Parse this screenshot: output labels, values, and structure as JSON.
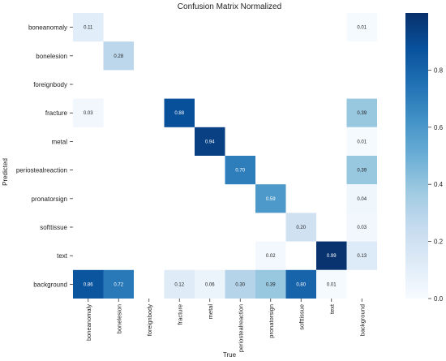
{
  "chart_data": {
    "type": "heatmap",
    "title": "Confusion Matrix Normalized",
    "xlabel": "True",
    "ylabel": "Predicted",
    "rows": [
      "boneanomaly",
      "bonelesion",
      "foreignbody",
      "fracture",
      "metal",
      "periostealreaction",
      "pronatorsign",
      "softtissue",
      "text",
      "background"
    ],
    "cols": [
      "boneanomaly",
      "bonelesion",
      "foreignbody",
      "fracture",
      "metal",
      "periostealreaction",
      "pronatorsign",
      "softtissue",
      "text",
      "background"
    ],
    "cells": [
      {
        "row": 0,
        "col": 0,
        "value": 0.11,
        "label": "0.11"
      },
      {
        "row": 0,
        "col": 9,
        "value": 0.01,
        "label": "0.01"
      },
      {
        "row": 1,
        "col": 1,
        "value": 0.28,
        "label": "0.28"
      },
      {
        "row": 3,
        "col": 0,
        "value": 0.03,
        "label": "0.03"
      },
      {
        "row": 3,
        "col": 3,
        "value": 0.88,
        "label": "0.88"
      },
      {
        "row": 3,
        "col": 9,
        "value": 0.39,
        "label": "0.39"
      },
      {
        "row": 4,
        "col": 4,
        "value": 0.94,
        "label": "0.94"
      },
      {
        "row": 4,
        "col": 9,
        "value": 0.01,
        "label": "0.01"
      },
      {
        "row": 5,
        "col": 5,
        "value": 0.7,
        "label": "0.70"
      },
      {
        "row": 5,
        "col": 9,
        "value": 0.39,
        "label": "0.39"
      },
      {
        "row": 6,
        "col": 6,
        "value": 0.59,
        "label": "0.59"
      },
      {
        "row": 6,
        "col": 9,
        "value": 0.04,
        "label": "0.04"
      },
      {
        "row": 7,
        "col": 7,
        "value": 0.2,
        "label": "0.20"
      },
      {
        "row": 7,
        "col": 9,
        "value": 0.03,
        "label": "0.03"
      },
      {
        "row": 8,
        "col": 6,
        "value": 0.02,
        "label": "0.02"
      },
      {
        "row": 8,
        "col": 8,
        "value": 0.99,
        "label": "0.99"
      },
      {
        "row": 8,
        "col": 9,
        "value": 0.13,
        "label": "0.13"
      },
      {
        "row": 9,
        "col": 0,
        "value": 0.86,
        "label": "0.86"
      },
      {
        "row": 9,
        "col": 1,
        "value": 0.72,
        "label": "0.72"
      },
      {
        "row": 9,
        "col": 3,
        "value": 0.12,
        "label": "0.12"
      },
      {
        "row": 9,
        "col": 4,
        "value": 0.06,
        "label": "0.06"
      },
      {
        "row": 9,
        "col": 5,
        "value": 0.3,
        "label": "0.30"
      },
      {
        "row": 9,
        "col": 6,
        "value": 0.39,
        "label": "0.39"
      },
      {
        "row": 9,
        "col": 7,
        "value": 0.8,
        "label": "0.80"
      },
      {
        "row": 9,
        "col": 8,
        "value": 0.01,
        "label": "0.01"
      }
    ],
    "colorbar": {
      "min": 0.0,
      "max": 1.0,
      "ticks": [
        "0.0",
        "0.2",
        "0.4",
        "0.6",
        "0.8"
      ],
      "tick_values": [
        0.0,
        0.2,
        0.4,
        0.6,
        0.8
      ],
      "colormap": "Blues"
    }
  }
}
